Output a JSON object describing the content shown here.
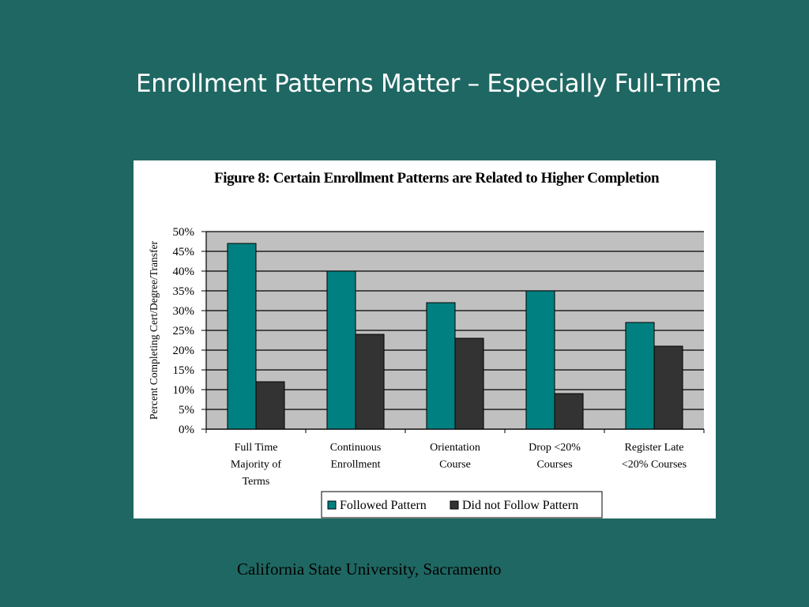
{
  "slide": {
    "title": "Enrollment Patterns Matter – Especially Full-Time",
    "footer": "California State University, Sacramento"
  },
  "colors": {
    "background": "#1f6762",
    "plot_area": "#c0c0c0",
    "followed": "#008080",
    "not_followed": "#333333"
  },
  "chart_data": {
    "type": "bar",
    "title": "Figure 8:  Certain Enrollment Patterns are Related to Higher Completion",
    "xlabel": "",
    "ylabel": "Percent Completing Cert/Degree/Transfer",
    "ylim": [
      0,
      50
    ],
    "yticks": [
      "0%",
      "5%",
      "10%",
      "15%",
      "20%",
      "25%",
      "30%",
      "35%",
      "40%",
      "45%",
      "50%"
    ],
    "grid": true,
    "legend_position": "bottom",
    "categories": [
      [
        "Full Time",
        "Majority of",
        "Terms"
      ],
      [
        "Continuous",
        "Enrollment"
      ],
      [
        "Orientation",
        "Course"
      ],
      [
        "Drop <20%",
        "Courses"
      ],
      [
        "Register Late",
        "<20% Courses"
      ]
    ],
    "series": [
      {
        "name": "Followed Pattern",
        "values": [
          47,
          40,
          32,
          35,
          27
        ]
      },
      {
        "name": "Did not Follow Pattern",
        "values": [
          12,
          24,
          23,
          9,
          21
        ]
      }
    ]
  }
}
